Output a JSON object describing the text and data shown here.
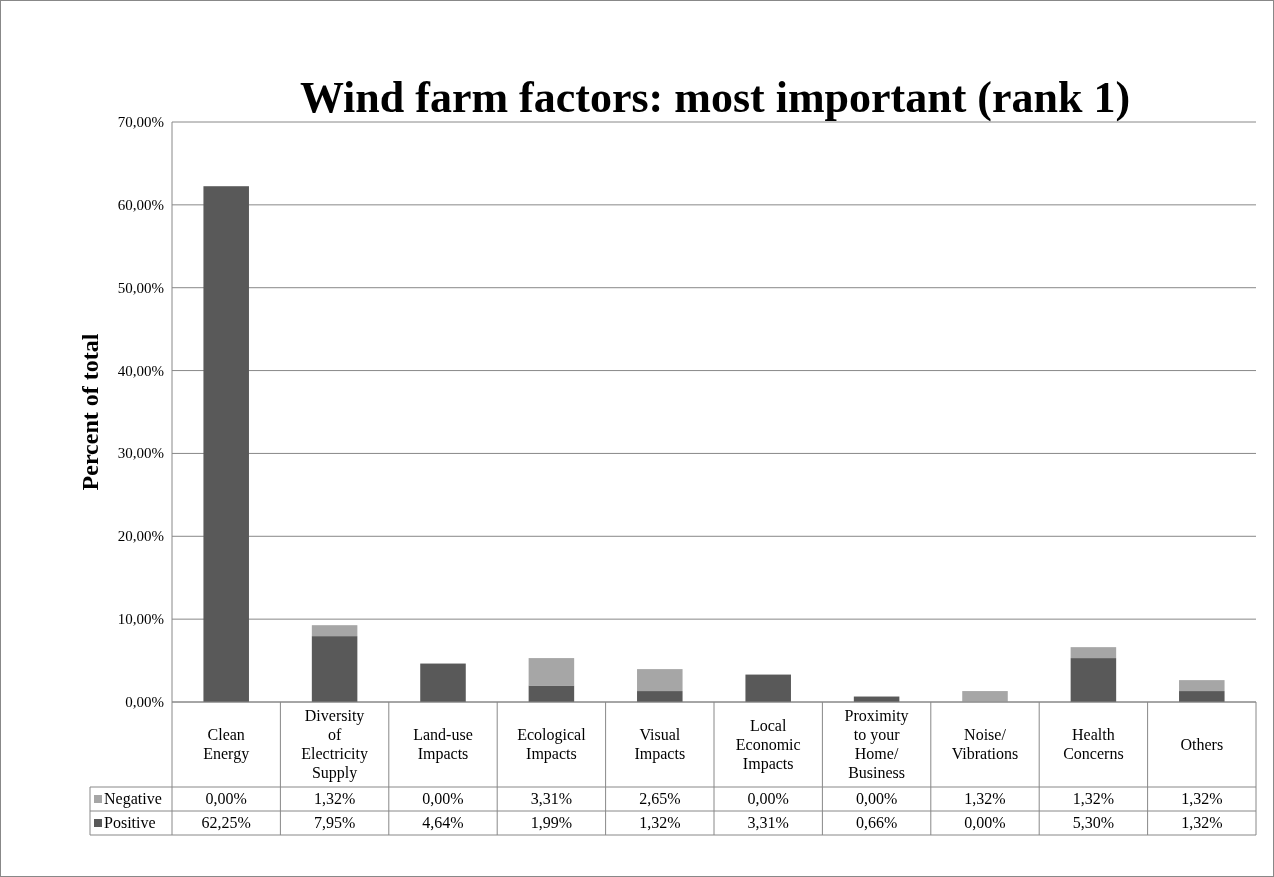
{
  "chart_data": {
    "type": "bar",
    "title": "Wind farm factors: most important (rank 1)",
    "ylabel": "Percent of total",
    "categories": [
      "Clean Energy",
      "Diversity of Electricity Supply",
      "Land-use Impacts",
      "Ecological Impacts",
      "Visual Impacts",
      "Local Economic Impacts",
      "Proximity to your Home/ Business",
      "Noise/ Vibrations",
      "Health Concerns",
      "Others"
    ],
    "stacked": true,
    "grid": "y",
    "legend": "bottom",
    "ylim": [
      0,
      70
    ],
    "yticks": [
      {
        "value": 0,
        "label": "0,00%"
      },
      {
        "value": 10,
        "label": "10,00%"
      },
      {
        "value": 20,
        "label": "20,00%"
      },
      {
        "value": 30,
        "label": "30,00%"
      },
      {
        "value": 40,
        "label": "40,00%"
      },
      {
        "value": 50,
        "label": "50,00%"
      },
      {
        "value": 60,
        "label": "60,00%"
      },
      {
        "value": 70,
        "label": "70,00%"
      }
    ],
    "series": [
      {
        "name": "Positive",
        "color": "#595959",
        "values": [
          62.25,
          7.95,
          4.64,
          1.99,
          1.32,
          3.31,
          0.66,
          0,
          5.3,
          1.32
        ],
        "value_labels": [
          "62,25%",
          "7,95%",
          "4,64%",
          "1,99%",
          "1,32%",
          "3,31%",
          "0,66%",
          "0,00%",
          "5,30%",
          "1,32%"
        ]
      },
      {
        "name": "Negative",
        "color": "#a6a6a6",
        "values": [
          0,
          1.32,
          0,
          3.31,
          2.65,
          0,
          0,
          1.32,
          1.32,
          1.32
        ],
        "value_labels": [
          "0,00%",
          "1,32%",
          "0,00%",
          "3,31%",
          "2,65%",
          "0,00%",
          "0,00%",
          "1,32%",
          "1,32%",
          "1,32%"
        ]
      }
    ]
  }
}
